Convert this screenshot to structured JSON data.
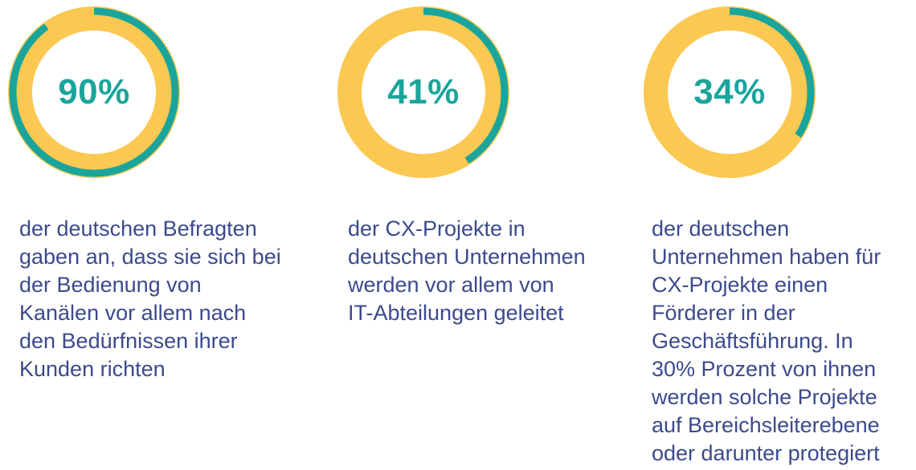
{
  "colors": {
    "track": "#fbc852",
    "progress": "#1aa59c",
    "value_text": "#1aa59c",
    "description_text": "#3c4a8c",
    "background": "#ffffff"
  },
  "chart_data": [
    {
      "type": "pie",
      "value": 90,
      "max": 100,
      "label": "90%",
      "description": "der deutschen Befragten\ngaben an, dass sie sich bei\nder Bedienung von\nKanälen vor allem nach\nden Bedürfnissen ihrer\nKunden richten"
    },
    {
      "type": "pie",
      "value": 41,
      "max": 100,
      "label": "41%",
      "description": "der CX-Projekte in\ndeutschen Unternehmen\nwerden vor allem von\nIT-Abteilungen geleitet"
    },
    {
      "type": "pie",
      "value": 34,
      "max": 100,
      "label": "34%",
      "description": "der deutschen\nUnternehmen haben für\nCX-Projekte einen\nFörderer in der\nGeschäftsführung. In\n30% Prozent von ihnen\nwerden solche Projekte\nauf Bereichsleiterebene\noder darunter protegiert"
    }
  ]
}
